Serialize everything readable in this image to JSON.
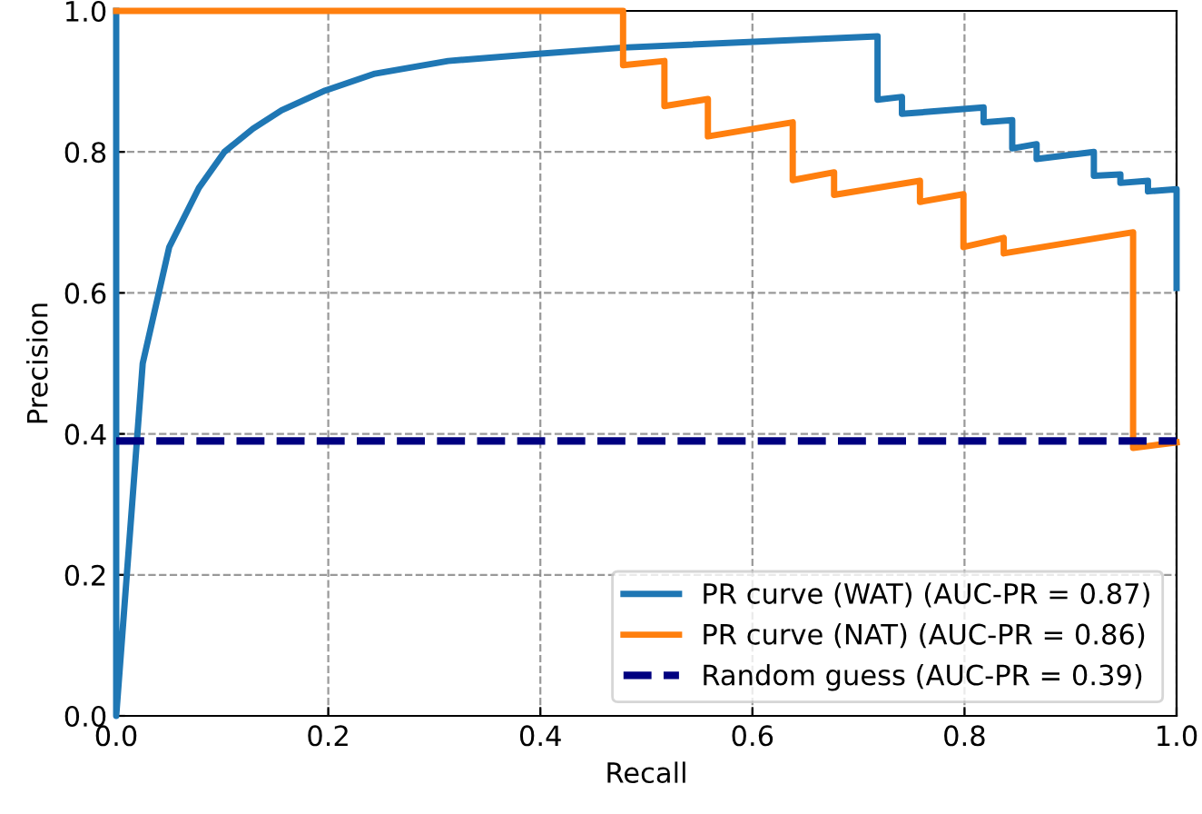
{
  "chart_data": {
    "type": "line",
    "xlabel": "Recall",
    "ylabel": "Precision",
    "xlim": [
      0,
      1
    ],
    "ylim": [
      0,
      1
    ],
    "xticks": [
      {
        "value": 0,
        "label": "0.0"
      },
      0.2,
      0.4,
      0.6,
      0.8,
      {
        "value": 1,
        "label": "1.0"
      }
    ],
    "yticks": [
      {
        "value": 0,
        "label": "0.0"
      },
      0.2,
      0.4,
      0.6,
      0.8,
      {
        "value": 1,
        "label": "1.0"
      }
    ],
    "grid": true,
    "legend": "bottom right",
    "line_style": "solid",
    "marker": "none",
    "series": [
      {
        "name": "PR curve (WAT) (AUC-PR = 0.87)",
        "color": "#1f77b4",
        "x": [
          0,
          0,
          0.025,
          0.05,
          0.078,
          0.102,
          0.129,
          0.156,
          0.197,
          0.244,
          0.313,
          0.398,
          0.478,
          0.718,
          0.718,
          0.741,
          0.741,
          0.818,
          0.818,
          0.845,
          0.845,
          0.868,
          0.868,
          0.922,
          0.922,
          0.947,
          0.947,
          0.973,
          0.973,
          1,
          1
        ],
        "values": [
          1,
          0,
          0.5,
          0.665,
          0.749,
          0.8,
          0.833,
          0.859,
          0.887,
          0.911,
          0.929,
          0.939,
          0.948,
          0.964,
          0.874,
          0.878,
          0.854,
          0.863,
          0.842,
          0.845,
          0.805,
          0.811,
          0.79,
          0.8,
          0.766,
          0.768,
          0.756,
          0.759,
          0.744,
          0.747,
          0.607
        ]
      },
      {
        "name": "PR curve (NAT) (AUC-PR = 0.86)",
        "color": "#ff7f0e",
        "x": [
          0,
          0.478,
          0.478,
          0.517,
          0.517,
          0.558,
          0.558,
          0.638,
          0.638,
          0.677,
          0.677,
          0.758,
          0.758,
          0.799,
          0.799,
          0.837,
          0.837,
          0.959,
          0.959,
          1
        ],
        "values": [
          1,
          1,
          0.923,
          0.929,
          0.865,
          0.875,
          0.822,
          0.842,
          0.76,
          0.771,
          0.739,
          0.759,
          0.729,
          0.74,
          0.665,
          0.678,
          0.656,
          0.686,
          0.38,
          0.388
        ]
      },
      {
        "name": "Random guess (AUC-PR = 0.39)",
        "color": "#000080",
        "x": [
          0,
          1
        ],
        "values": [
          0.39,
          0.39
        ],
        "line_style": "dashed"
      }
    ]
  }
}
